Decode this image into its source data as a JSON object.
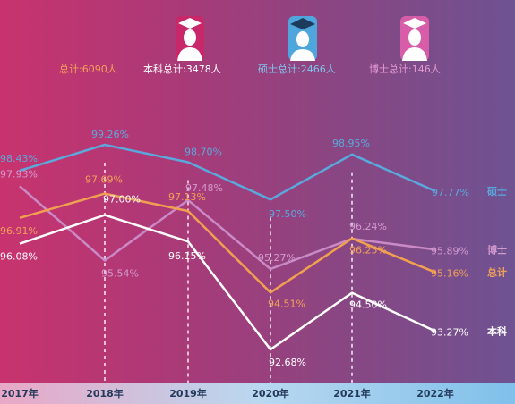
{
  "legend": [
    {
      "key": "total",
      "label": "总计:6090人",
      "color": "#f5a05a",
      "icon": "none"
    },
    {
      "key": "bachelor",
      "label": "本科总计:3478人",
      "color": "#ffffff",
      "icon": "graduate-male-icon"
    },
    {
      "key": "master",
      "label": "硕士总计:2466人",
      "color": "#7ec4ee",
      "icon": "graduate-icon"
    },
    {
      "key": "phd",
      "label": "博士总计:146人",
      "color": "#e59ad0",
      "icon": "graduate-female-icon"
    }
  ],
  "chart_data": {
    "type": "line",
    "categories": [
      "2017年",
      "2018年",
      "2019年",
      "2020年",
      "2021年",
      "2022年"
    ],
    "series": [
      {
        "name": "硕士",
        "key": "master",
        "color": "#5ba8dc",
        "values": [
          98.43,
          99.26,
          98.7,
          97.5,
          98.95,
          97.77
        ],
        "labels": [
          "98.43%",
          "99.26%",
          "98.70%",
          "97.50%",
          "98.95%",
          "97.77%"
        ]
      },
      {
        "name": "博士",
        "key": "phd",
        "color": "#c98ac6",
        "values": [
          97.93,
          95.54,
          97.48,
          95.27,
          96.24,
          95.89
        ],
        "labels": [
          "97.93%",
          "95.54%",
          "97.48%",
          "95.27%",
          "96.24%",
          "95.89%"
        ]
      },
      {
        "name": "总计",
        "key": "total",
        "color": "#f0a050",
        "values": [
          96.91,
          97.69,
          97.13,
          94.51,
          96.25,
          95.16
        ],
        "labels": [
          "96.91%",
          "97.69%",
          "97.13%",
          "94.51%",
          "96.25%",
          "95.16%"
        ]
      },
      {
        "name": "本科",
        "key": "bachelor",
        "color": "#ffffff",
        "values": [
          96.08,
          97.0,
          96.15,
          92.68,
          94.5,
          93.27
        ],
        "labels": [
          "96.08%",
          "97.00%",
          "96.15%",
          "92.68%",
          "94.50%",
          "93.27%"
        ]
      }
    ],
    "title": "",
    "xlabel": "",
    "ylabel": "",
    "grid": false,
    "legend_position": "top"
  }
}
